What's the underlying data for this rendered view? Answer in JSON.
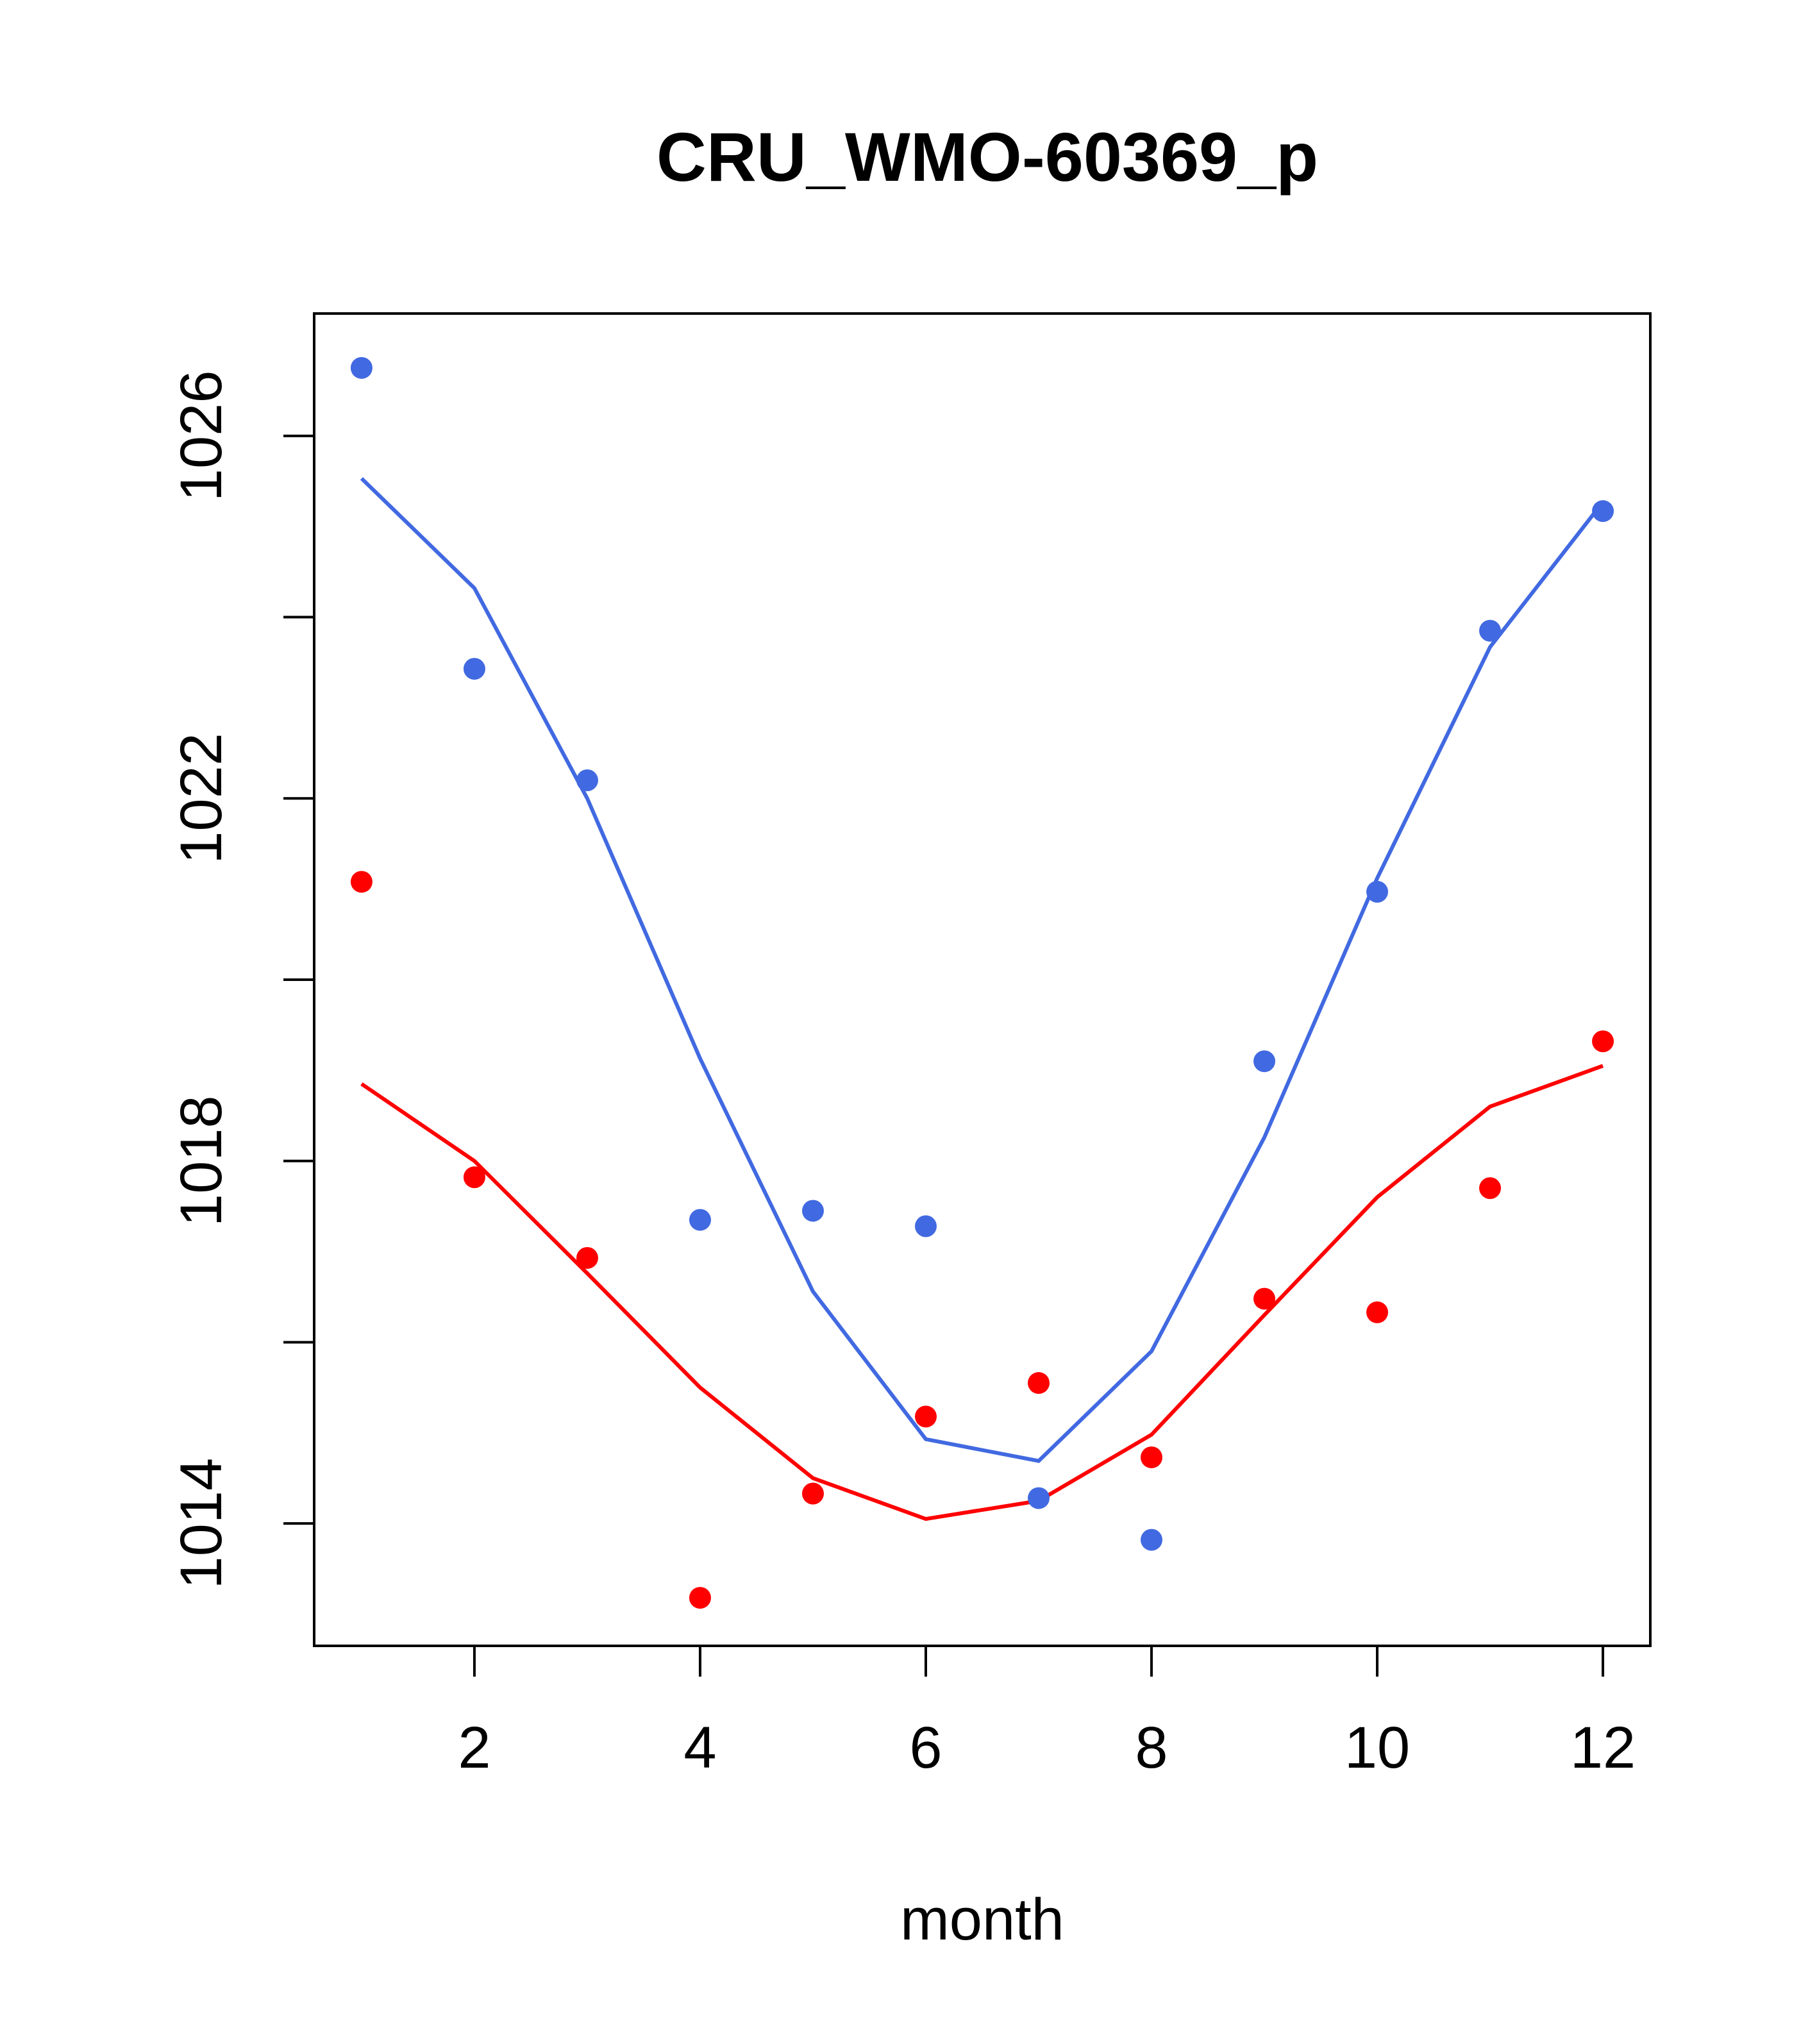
{
  "chart_data": {
    "type": "line",
    "title": "CRU_WMO-60369_p",
    "xlabel": "month",
    "ylabel": "",
    "xlim": [
      0.58,
      12.42
    ],
    "ylim": [
      1012.65,
      1027.35
    ],
    "x_ticks": [
      2,
      4,
      6,
      8,
      10,
      12
    ],
    "y_ticks": [
      1014,
      1016,
      1018,
      1020,
      1022,
      1024,
      1026
    ],
    "y_tick_labels": [
      {
        "value": 1014,
        "label": "1014"
      },
      {
        "value": 1018,
        "label": "1018"
      },
      {
        "value": 1022,
        "label": "1022"
      },
      {
        "value": 1026,
        "label": "1026"
      }
    ],
    "grid": false,
    "x": [
      1,
      2,
      3,
      4,
      5,
      6,
      7,
      8,
      9,
      10,
      11,
      12
    ],
    "series": [
      {
        "name": "blue-points",
        "kind": "points",
        "color": "#4169E1",
        "values": [
          1026.75,
          1023.43,
          1022.2,
          1017.35,
          1017.45,
          1017.28,
          1014.28,
          1013.82,
          1019.1,
          1020.97,
          1023.85,
          1025.17
        ]
      },
      {
        "name": "blue-line",
        "kind": "line",
        "color": "#4169E1",
        "values": [
          1025.53,
          1024.32,
          1022.0,
          1019.13,
          1016.56,
          1014.93,
          1014.69,
          1015.9,
          1018.26,
          1021.12,
          1023.67,
          1025.27
        ]
      },
      {
        "name": "red-points",
        "kind": "points",
        "color": "#FF0000",
        "values": [
          1021.08,
          1017.82,
          1016.93,
          1013.18,
          1014.33,
          1015.18,
          1015.55,
          1014.73,
          1016.48,
          1016.33,
          1017.7,
          1019.32
        ]
      },
      {
        "name": "red-line",
        "kind": "line",
        "color": "#FF0000",
        "values": [
          1018.85,
          1018.0,
          1016.76,
          1015.5,
          1014.5,
          1014.05,
          1014.25,
          1014.98,
          1016.3,
          1017.6,
          1018.6,
          1019.05
        ]
      }
    ]
  }
}
